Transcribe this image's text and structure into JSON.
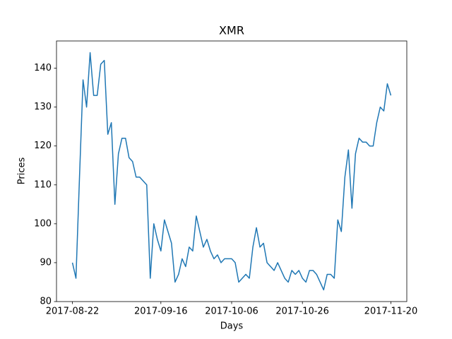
{
  "chart_data": {
    "type": "line",
    "title": "XMR",
    "x_label": "Days",
    "y_label": "Prices",
    "x": [
      "2017-08-22",
      "2017-08-23",
      "2017-08-24",
      "2017-08-25",
      "2017-08-26",
      "2017-08-27",
      "2017-08-28",
      "2017-08-29",
      "2017-08-30",
      "2017-08-31",
      "2017-09-01",
      "2017-09-02",
      "2017-09-03",
      "2017-09-04",
      "2017-09-05",
      "2017-09-06",
      "2017-09-07",
      "2017-09-08",
      "2017-09-09",
      "2017-09-10",
      "2017-09-11",
      "2017-09-12",
      "2017-09-13",
      "2017-09-14",
      "2017-09-15",
      "2017-09-16",
      "2017-09-17",
      "2017-09-18",
      "2017-09-19",
      "2017-09-20",
      "2017-09-21",
      "2017-09-22",
      "2017-09-23",
      "2017-09-24",
      "2017-09-25",
      "2017-09-26",
      "2017-09-27",
      "2017-09-28",
      "2017-09-29",
      "2017-09-30",
      "2017-10-01",
      "2017-10-02",
      "2017-10-03",
      "2017-10-04",
      "2017-10-05",
      "2017-10-06",
      "2017-10-07",
      "2017-10-08",
      "2017-10-09",
      "2017-10-10",
      "2017-10-11",
      "2017-10-12",
      "2017-10-13",
      "2017-10-14",
      "2017-10-15",
      "2017-10-16",
      "2017-10-17",
      "2017-10-18",
      "2017-10-19",
      "2017-10-20",
      "2017-10-21",
      "2017-10-22",
      "2017-10-23",
      "2017-10-24",
      "2017-10-25",
      "2017-10-26",
      "2017-10-27",
      "2017-10-28",
      "2017-10-29",
      "2017-10-30",
      "2017-10-31",
      "2017-11-01",
      "2017-11-02",
      "2017-11-03",
      "2017-11-04",
      "2017-11-05",
      "2017-11-06",
      "2017-11-07",
      "2017-11-08",
      "2017-11-09",
      "2017-11-10",
      "2017-11-11",
      "2017-11-12",
      "2017-11-13",
      "2017-11-14",
      "2017-11-15",
      "2017-11-16",
      "2017-11-17",
      "2017-11-18",
      "2017-11-19",
      "2017-11-20"
    ],
    "values": [
      90,
      86,
      112,
      137,
      130,
      144,
      133,
      133,
      141,
      142,
      123,
      126,
      105,
      118,
      122,
      122,
      117,
      116,
      112,
      112,
      111,
      110,
      86,
      100,
      96,
      93,
      101,
      98,
      95,
      85,
      87,
      91,
      89,
      94,
      93,
      102,
      98,
      94,
      96,
      93,
      91,
      92,
      90,
      91,
      91,
      91,
      90,
      85,
      86,
      87,
      86,
      94,
      99,
      94,
      95,
      90,
      89,
      88,
      90,
      88,
      86,
      85,
      88,
      87,
      88,
      86,
      85,
      88,
      88,
      87,
      85,
      83,
      87,
      87,
      86,
      101,
      98,
      112,
      119,
      104,
      118,
      122,
      121,
      121,
      120,
      120,
      126,
      130,
      129,
      136,
      133
    ],
    "color": "#1f77b4",
    "xlim": [
      "2017-08-17T12:00",
      "2017-11-24T12:00"
    ],
    "xticks": [
      "2017-08-22",
      "2017-09-16",
      "2017-10-06",
      "2017-10-26",
      "2017-11-20"
    ],
    "ylim": [
      80,
      147
    ],
    "yticks": [
      80,
      90,
      100,
      110,
      120,
      130,
      140
    ]
  }
}
